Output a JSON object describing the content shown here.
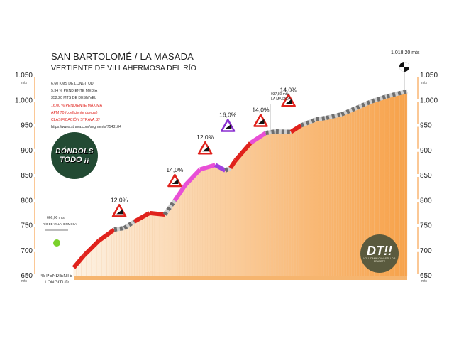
{
  "title": "SAN BARTOLOMÉ / LA MASADA",
  "subtitle": "VERTIENTE DE VILLAHERMOSA DEL RÍO",
  "info": {
    "distance": "6,60 KMS DE LONGITUD",
    "avg_grade": "5,34 % PENDIENTE MEDIA",
    "gain": "352,20 MTS DE DESNIVEL",
    "max_grade": "16,00 % PENDIENTE MÁXIMA",
    "apm": "APM 70 (coeficiente dureza)",
    "strava": "CLASIFICACIÓN STRAVA: 2ª",
    "url": "https://www.strava.com/segments/7543184"
  },
  "start_point": {
    "elevation": "666,00 mts",
    "name": "RÍO DE VILLAHERMOSA"
  },
  "summit_point": {
    "elevation": "1.018,20 mts"
  },
  "waypoint": {
    "elevation": "937,80 mts",
    "name": "LA MASADA"
  },
  "bottom_labels": {
    "grade": "% PENDIENTE",
    "length": "LONGITUD"
  },
  "logos": {
    "left_line1": "DÓNDOLS",
    "left_line2": "TODO ¡¡",
    "right_line1": "DT!!",
    "right_line2": "VOLL-DAMM CANASTILLO & BRUNETE"
  },
  "colors": {
    "fill_light": "#fdf2e4",
    "fill_dark": "#f7a24a",
    "grade_low": "#d0d0d0",
    "grade_mid": "#e0221c",
    "grade_high": "#e84fd6",
    "grade_max": "#a040e0",
    "grade_flat": "#8a8a8a",
    "band": "#fbc896"
  },
  "chart_data": {
    "type": "area",
    "title": "SAN BARTOLOMÉ / LA MASADA",
    "subtitle": "VERTIENTE DE VILLAHERMOSA DEL RÍO",
    "xlabel": "LONGITUD",
    "ylabel": "mts",
    "ylim": [
      650,
      1050
    ],
    "yticks": [
      650,
      700,
      750,
      800,
      850,
      900,
      950,
      "1.000",
      "1.050"
    ],
    "ytick_values": [
      650,
      700,
      750,
      800,
      850,
      900,
      950,
      1000,
      1050
    ],
    "xlim": [
      0,
      6.6
    ],
    "x": [
      0,
      0.2,
      0.5,
      0.8,
      1.0,
      1.2,
      1.5,
      1.8,
      2.0,
      2.2,
      2.5,
      2.8,
      3.0,
      3.1,
      3.2,
      3.5,
      3.8,
      4.0,
      4.3,
      4.5,
      4.8,
      5.0,
      5.3,
      5.6,
      5.9,
      6.2,
      6.6
    ],
    "y": [
      666,
      690,
      720,
      742,
      745,
      758,
      775,
      772,
      800,
      830,
      862,
      871,
      860,
      865,
      880,
      915,
      935,
      938,
      937,
      950,
      962,
      965,
      972,
      985,
      998,
      1008,
      1018
    ],
    "grade_colors": [
      "mid",
      "mid",
      "mid",
      "low",
      "low",
      "mid",
      "mid",
      "low",
      "high",
      "high",
      "high",
      "max",
      "low",
      "mid",
      "mid",
      "high",
      "low",
      "low",
      "mid",
      "low",
      "low",
      "low",
      "low",
      "low",
      "low",
      "low"
    ],
    "annotations": [
      {
        "label": "12,0%",
        "x": 0.9,
        "y": 780
      },
      {
        "label": "14,0%",
        "x": 2.0,
        "y": 840
      },
      {
        "label": "12,0%",
        "x": 2.6,
        "y": 905
      },
      {
        "label": "16,0%",
        "x": 3.05,
        "y": 950
      },
      {
        "label": "14,0%",
        "x": 3.7,
        "y": 960
      },
      {
        "label": "14,0%",
        "x": 4.25,
        "y": 1000
      }
    ],
    "grid": false
  }
}
